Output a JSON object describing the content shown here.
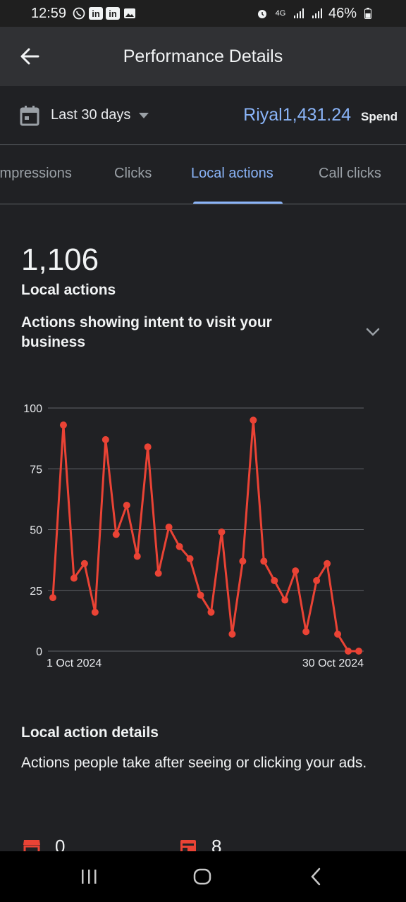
{
  "status_bar": {
    "time": "12:59",
    "battery": "46%",
    "icons_left": [
      "whatsapp-icon",
      "linkedin-icon",
      "linkedin-icon",
      "gallery-icon"
    ],
    "icons_right": [
      "alarm-icon",
      "4g-icon",
      "signal-icon",
      "signal-icon",
      "battery-icon"
    ]
  },
  "app_bar": {
    "title": "Performance Details",
    "back_icon": "arrow-back-icon"
  },
  "filter": {
    "date_range": "Last 30 days",
    "spend_value": "Riyal1,431.24",
    "spend_label": "Spend"
  },
  "tabs": [
    {
      "label": "Impressions",
      "active": false
    },
    {
      "label": "Clicks",
      "active": false
    },
    {
      "label": "Local actions",
      "active": true
    },
    {
      "label": "Call clicks",
      "active": false
    }
  ],
  "metric": {
    "value": "1,106",
    "label": "Local actions",
    "description": "Actions showing intent to visit your business"
  },
  "chart_data": {
    "type": "line",
    "x_start_label": "1 Oct 2024",
    "x_end_label": "30 Oct 2024",
    "y_ticks": [
      0,
      25,
      50,
      75,
      100
    ],
    "ylim": [
      0,
      100
    ],
    "grid": true,
    "color": "#ea4335",
    "values": [
      22,
      93,
      30,
      36,
      16,
      87,
      48,
      60,
      39,
      84,
      32,
      51,
      43,
      38,
      23,
      16,
      49,
      7,
      37,
      95,
      37,
      29,
      21,
      33,
      8,
      29,
      36,
      7,
      0,
      0
    ]
  },
  "details": {
    "title": "Local action details",
    "description": "Actions people take after seeing or clicking your ads.",
    "items": [
      {
        "icon": "store-icon",
        "value": "0"
      },
      {
        "icon": "directions-icon",
        "value": "8"
      }
    ]
  },
  "colors": {
    "accent": "#8ab4f8",
    "series": "#ea4335",
    "background": "#202124",
    "app_bar": "#303134"
  }
}
